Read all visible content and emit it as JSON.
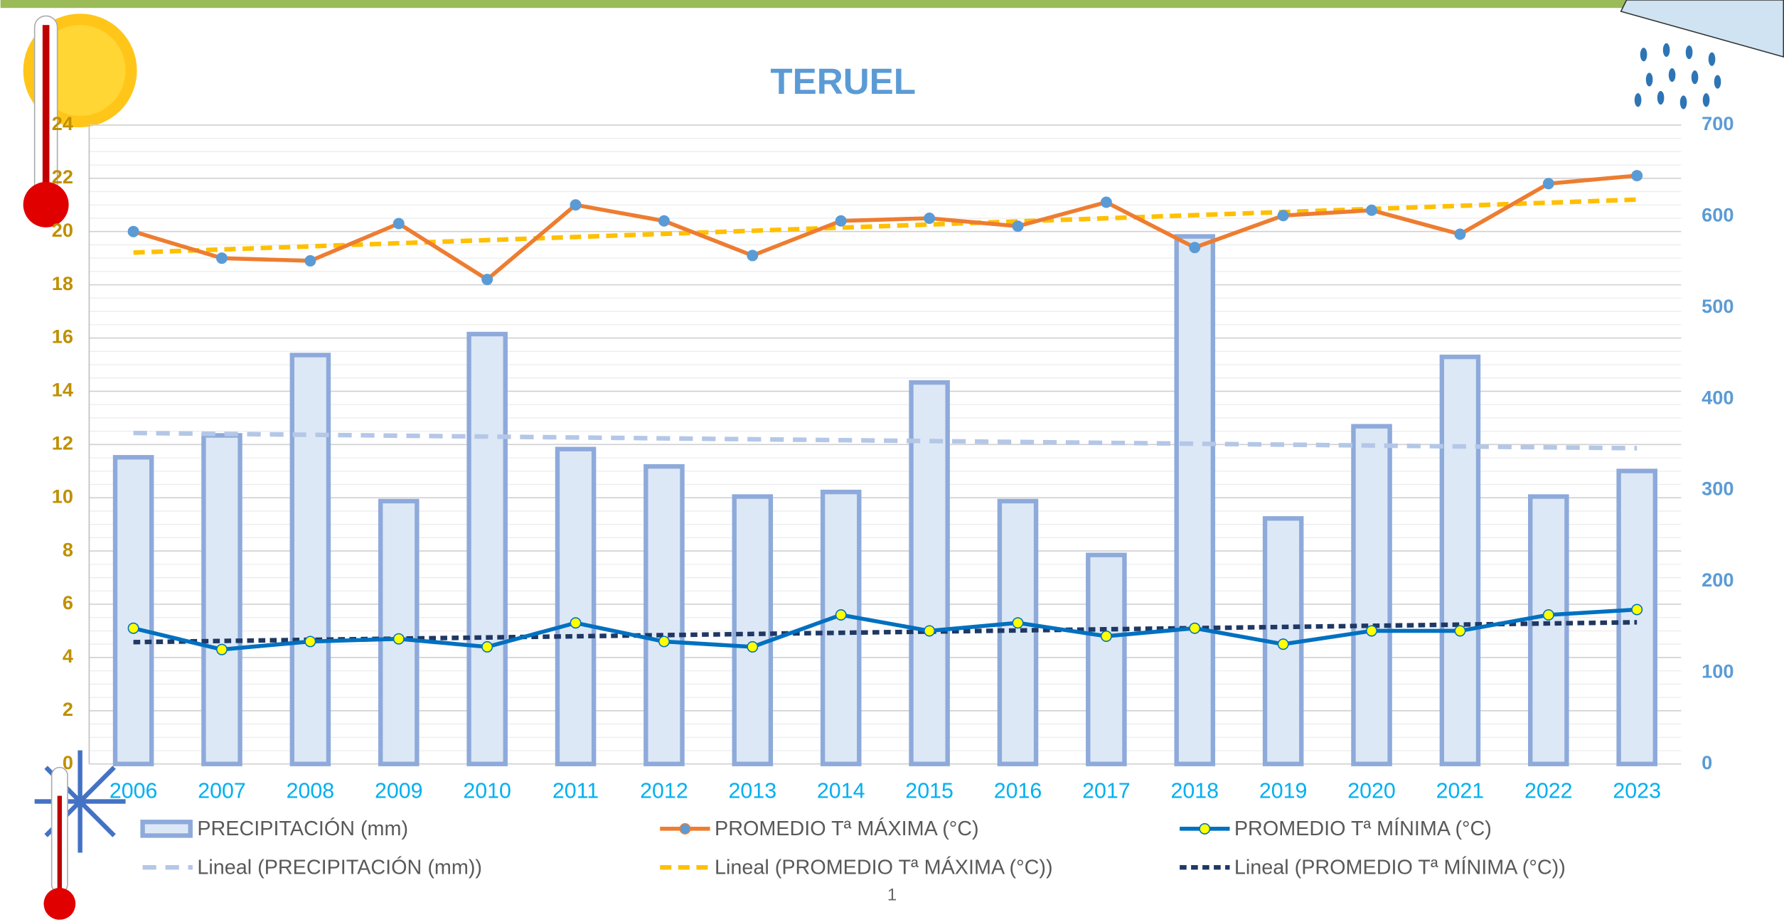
{
  "chart_data": {
    "type": "combo",
    "title": "TERUEL",
    "categories": [
      "2006",
      "2007",
      "2008",
      "2009",
      "2010",
      "2011",
      "2012",
      "2013",
      "2014",
      "2015",
      "2016",
      "2017",
      "2018",
      "2019",
      "2020",
      "2021",
      "2022",
      "2023"
    ],
    "series": [
      {
        "name": "PRECIPITACIÓN (mm)",
        "type": "bar",
        "axis": "y2",
        "color": "#8eaadb",
        "fill": "#dde8f6",
        "values": [
          336,
          360,
          448,
          288,
          471,
          345,
          326,
          293,
          298,
          418,
          288,
          229,
          578,
          269,
          370,
          446,
          293,
          321
        ]
      },
      {
        "name": "PROMEDIO Tª MÁXIMA (°C)",
        "type": "line",
        "color": "#ed7d31",
        "marker_color": "#5b9bd5",
        "values": [
          20.0,
          19.0,
          18.9,
          20.3,
          18.2,
          21.0,
          20.4,
          19.1,
          20.4,
          20.5,
          20.2,
          21.1,
          19.4,
          20.6,
          20.8,
          19.9,
          21.8,
          22.1
        ]
      },
      {
        "name": "PROMEDIO Tª MÍNIMA (°C)",
        "type": "line",
        "color": "#0070c0",
        "marker_color": "#ffff00",
        "values": [
          5.1,
          4.3,
          4.6,
          4.7,
          4.4,
          5.3,
          4.6,
          4.4,
          5.6,
          5.0,
          5.3,
          4.8,
          5.1,
          4.5,
          5.0,
          5.0,
          5.6,
          5.8
        ]
      }
    ],
    "trendlines": [
      {
        "name": "Lineal (PRECIPITACIÓN (mm))",
        "color": "#b4c7e7"
      },
      {
        "name": "Lineal (PROMEDIO Tª MÁXIMA (°C))",
        "color": "#ffc000"
      },
      {
        "name": "Lineal (PROMEDIO Tª MÍNIMA (°C))",
        "color": "#1f3864"
      }
    ],
    "ylim": [
      0,
      24
    ],
    "yticks": [
      0,
      2,
      4,
      6,
      8,
      10,
      12,
      14,
      16,
      18,
      20,
      22,
      24
    ],
    "y2lim": [
      0,
      700
    ],
    "y2ticks": [
      0,
      100,
      200,
      300,
      400,
      500,
      600,
      700
    ],
    "grid": true
  },
  "footer": "1"
}
